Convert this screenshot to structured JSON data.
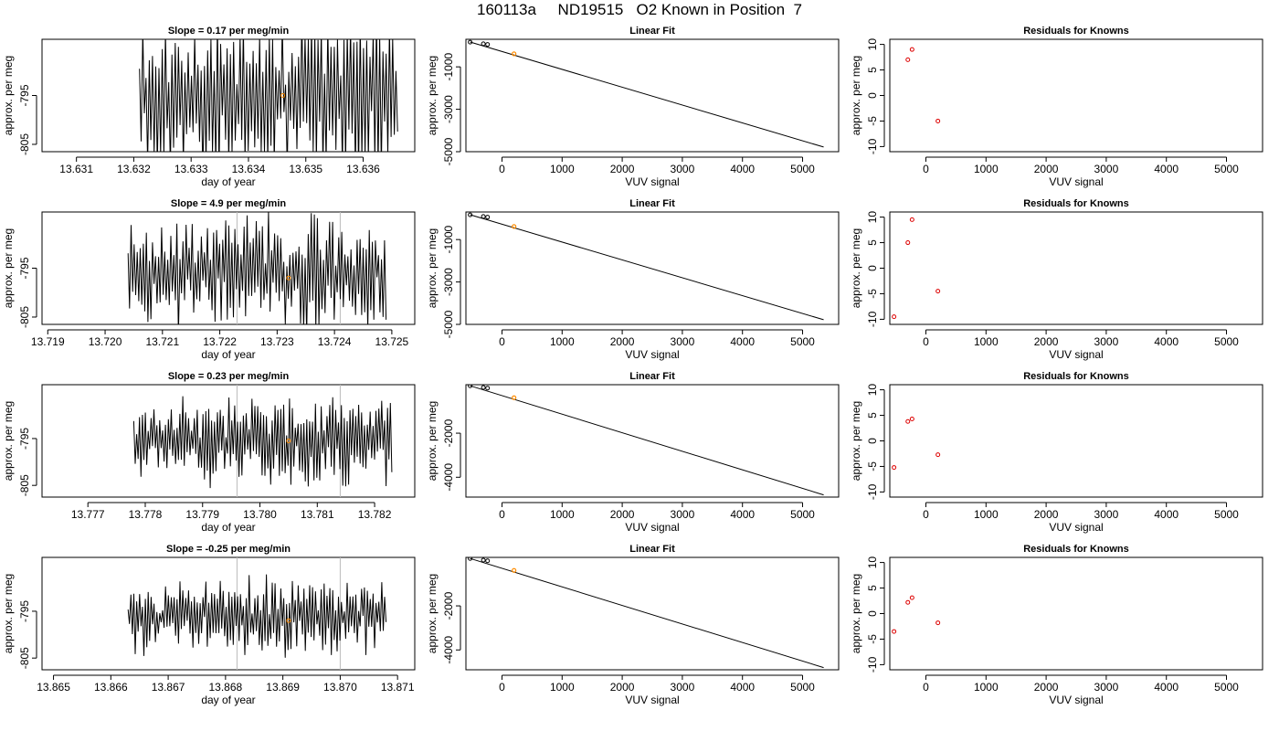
{
  "page_title": "160113a     ND19515   O2 Known in Position  7",
  "colors": {
    "trace": "#000000",
    "known_point": "#ff8c00",
    "residual_point": "#dd0000",
    "vline": "#bbbbbb"
  },
  "chart_data": [
    {
      "id": "trace-1",
      "type": "line",
      "title": "Slope =  0.17  per meg/min",
      "xlabel": "day of year",
      "ylabel": "approx. per meg",
      "xlim": [
        13.6304,
        13.6369
      ],
      "ylim": [
        -806.5,
        -783.5
      ],
      "xticks": [
        13.631,
        13.632,
        13.633,
        13.634,
        13.635,
        13.636
      ],
      "xtick_labels": [
        "13.631",
        "13.632",
        "13.633",
        "13.634",
        "13.635",
        "13.636"
      ],
      "yticks": [
        -795,
        -805
      ],
      "ytick_labels": [
        "-795",
        "-805"
      ],
      "x_start": 13.6321,
      "x_end": 13.6366,
      "n_points": 160,
      "center": -795,
      "amplitude": 14,
      "seed": 11,
      "marker": {
        "x": 13.6346,
        "y": -795
      },
      "vlines": []
    },
    {
      "id": "fit-1",
      "type": "scatter",
      "title": "Linear Fit",
      "xlabel": "VUV signal",
      "ylabel": "approx. per meg",
      "xlim": [
        -600,
        5600
      ],
      "ylim": [
        -5000,
        300
      ],
      "xticks": [
        0,
        1000,
        2000,
        3000,
        4000,
        5000
      ],
      "xtick_labels": [
        "0",
        "1000",
        "2000",
        "3000",
        "4000",
        "5000"
      ],
      "yticks": [
        -1000,
        -3000,
        -5000
      ],
      "ytick_labels": [
        "-1000",
        "-3000",
        "-5000"
      ],
      "points": [
        [
          -530,
          165
        ],
        [
          -310,
          90
        ],
        [
          -240,
          55
        ]
      ],
      "known": [
        200,
        -385
      ],
      "line": [
        [
          -530,
          170
        ],
        [
          5350,
          -4780
        ]
      ]
    },
    {
      "id": "resid-1",
      "type": "scatter",
      "title": "Residuals for Knowns",
      "xlabel": "VUV signal",
      "ylabel": "approx. per meg",
      "xlim": [
        -600,
        5600
      ],
      "ylim": [
        -11,
        11
      ],
      "xticks": [
        0,
        1000,
        2000,
        3000,
        4000,
        5000
      ],
      "xtick_labels": [
        "0",
        "1000",
        "2000",
        "3000",
        "4000",
        "5000"
      ],
      "yticks": [
        10,
        5,
        0,
        -5,
        -10
      ],
      "ytick_labels": [
        "10",
        "5",
        "0",
        "-5",
        "-10"
      ],
      "points": [
        [
          -300,
          7
        ],
        [
          -230,
          9
        ],
        [
          200,
          -5
        ]
      ]
    },
    {
      "id": "trace-2",
      "type": "line",
      "title": "Slope =  4.9  per meg/min",
      "xlabel": "day of year",
      "ylabel": "approx. per meg",
      "xlim": [
        13.7189,
        13.7254
      ],
      "ylim": [
        -806.5,
        -783.5
      ],
      "xticks": [
        13.719,
        13.72,
        13.721,
        13.722,
        13.723,
        13.724,
        13.725
      ],
      "xtick_labels": [
        "13.719",
        "13.720",
        "13.721",
        "13.722",
        "13.723",
        "13.724",
        "13.725"
      ],
      "yticks": [
        -795,
        -805
      ],
      "ytick_labels": [
        "-795",
        "-805"
      ],
      "x_start": 13.7204,
      "x_end": 13.7249,
      "n_points": 170,
      "center": -796,
      "amplitude": 10,
      "seed": 23,
      "marker": {
        "x": 13.7232,
        "y": -797
      },
      "vlines": [
        13.7223,
        13.7241
      ]
    },
    {
      "id": "fit-2",
      "type": "scatter",
      "title": "Linear Fit",
      "xlabel": "VUV signal",
      "ylabel": "approx. per meg",
      "xlim": [
        -600,
        5600
      ],
      "ylim": [
        -5000,
        300
      ],
      "xticks": [
        0,
        1000,
        2000,
        3000,
        4000,
        5000
      ],
      "xtick_labels": [
        "0",
        "1000",
        "2000",
        "3000",
        "4000",
        "5000"
      ],
      "yticks": [
        -1000,
        -3000,
        -5000
      ],
      "ytick_labels": [
        "-1000",
        "-3000",
        "-5000"
      ],
      "points": [
        [
          -530,
          165
        ],
        [
          -310,
          90
        ],
        [
          -240,
          55
        ]
      ],
      "known": [
        200,
        -385
      ],
      "line": [
        [
          -530,
          170
        ],
        [
          5350,
          -4780
        ]
      ]
    },
    {
      "id": "resid-2",
      "type": "scatter",
      "title": "Residuals for Knowns",
      "xlabel": "VUV signal",
      "ylabel": "approx. per meg",
      "xlim": [
        -600,
        5600
      ],
      "ylim": [
        -11,
        11
      ],
      "xticks": [
        0,
        1000,
        2000,
        3000,
        4000,
        5000
      ],
      "xtick_labels": [
        "0",
        "1000",
        "2000",
        "3000",
        "4000",
        "5000"
      ],
      "yticks": [
        10,
        5,
        0,
        -5,
        -10
      ],
      "ytick_labels": [
        "10",
        "5",
        "0",
        "-5",
        "-10"
      ],
      "points": [
        [
          -530,
          -9.5
        ],
        [
          -300,
          5
        ],
        [
          -230,
          9.5
        ],
        [
          200,
          -4.5
        ]
      ]
    },
    {
      "id": "trace-3",
      "type": "line",
      "title": "Slope =  0.23  per meg/min",
      "xlabel": "day of year",
      "ylabel": "approx. per meg",
      "xlim": [
        13.7762,
        13.7827
      ],
      "ylim": [
        -807.5,
        -783.5
      ],
      "xticks": [
        13.777,
        13.778,
        13.779,
        13.78,
        13.781,
        13.782
      ],
      "xtick_labels": [
        "13.777",
        "13.778",
        "13.779",
        "13.780",
        "13.781",
        "13.782"
      ],
      "yticks": [
        -795,
        -805
      ],
      "ytick_labels": [
        "-795",
        "-805"
      ],
      "x_start": 13.7778,
      "x_end": 13.7823,
      "n_points": 180,
      "center": -795.5,
      "amplitude": 8,
      "seed": 37,
      "marker": {
        "x": 13.7805,
        "y": -795.5
      },
      "vlines": [
        13.7796,
        13.7814
      ]
    },
    {
      "id": "fit-3",
      "type": "scatter",
      "title": "Linear Fit",
      "xlabel": "VUV signal",
      "ylabel": "approx. per meg",
      "xlim": [
        -600,
        5600
      ],
      "ylim": [
        -4900,
        200
      ],
      "xticks": [
        0,
        1000,
        2000,
        3000,
        4000,
        5000
      ],
      "xtick_labels": [
        "0",
        "1000",
        "2000",
        "3000",
        "4000",
        "5000"
      ],
      "yticks": [
        -2000,
        -4000
      ],
      "ytick_labels": [
        "-2000",
        "-4000"
      ],
      "points": [
        [
          -530,
          150
        ],
        [
          -310,
          75
        ],
        [
          -240,
          45
        ]
      ],
      "known": [
        200,
        -390
      ],
      "line": [
        [
          -530,
          150
        ],
        [
          5350,
          -4800
        ]
      ]
    },
    {
      "id": "resid-3",
      "type": "scatter",
      "title": "Residuals for Knowns",
      "xlabel": "VUV signal",
      "ylabel": "approx. per meg",
      "xlim": [
        -600,
        5600
      ],
      "ylim": [
        -11,
        11
      ],
      "xticks": [
        0,
        1000,
        2000,
        3000,
        4000,
        5000
      ],
      "xtick_labels": [
        "0",
        "1000",
        "2000",
        "3000",
        "4000",
        "5000"
      ],
      "yticks": [
        10,
        5,
        0,
        -5,
        -10
      ],
      "ytick_labels": [
        "10",
        "5",
        "0",
        "-5",
        "-10"
      ],
      "points": [
        [
          -530,
          -5.2
        ],
        [
          -300,
          3.8
        ],
        [
          -230,
          4.3
        ],
        [
          200,
          -2.7
        ]
      ]
    },
    {
      "id": "trace-4",
      "type": "line",
      "title": "Slope =  -0.25  per meg/min",
      "xlabel": "day of year",
      "ylabel": "approx. per meg",
      "xlim": [
        13.8648,
        13.8713
      ],
      "ylim": [
        -807.5,
        -783.5
      ],
      "xticks": [
        13.865,
        13.866,
        13.867,
        13.868,
        13.869,
        13.87,
        13.871
      ],
      "xtick_labels": [
        "13.865",
        "13.866",
        "13.867",
        "13.868",
        "13.869",
        "13.870",
        "13.871"
      ],
      "yticks": [
        -795,
        -805
      ],
      "ytick_labels": [
        "-795",
        "-805"
      ],
      "x_start": 13.8663,
      "x_end": 13.8708,
      "n_points": 180,
      "center": -796,
      "amplitude": 6.5,
      "seed": 53,
      "marker": {
        "x": 13.8691,
        "y": -797
      },
      "vlines": [
        13.8682,
        13.87
      ]
    },
    {
      "id": "fit-4",
      "type": "scatter",
      "title": "Linear Fit",
      "xlabel": "VUV signal",
      "ylabel": "approx. per meg",
      "xlim": [
        -600,
        5600
      ],
      "ylim": [
        -4900,
        200
      ],
      "xticks": [
        0,
        1000,
        2000,
        3000,
        4000,
        5000
      ],
      "xtick_labels": [
        "0",
        "1000",
        "2000",
        "3000",
        "4000",
        "5000"
      ],
      "yticks": [
        -2000,
        -4000
      ],
      "ytick_labels": [
        "-2000",
        "-4000"
      ],
      "points": [
        [
          -530,
          150
        ],
        [
          -310,
          75
        ],
        [
          -240,
          45
        ]
      ],
      "known": [
        200,
        -390
      ],
      "line": [
        [
          -530,
          150
        ],
        [
          5350,
          -4800
        ]
      ]
    },
    {
      "id": "resid-4",
      "type": "scatter",
      "title": "Residuals for Knowns",
      "xlabel": "VUV signal",
      "ylabel": "approx. per meg",
      "xlim": [
        -600,
        5600
      ],
      "ylim": [
        -11,
        11
      ],
      "xticks": [
        0,
        1000,
        2000,
        3000,
        4000,
        5000
      ],
      "xtick_labels": [
        "0",
        "1000",
        "2000",
        "3000",
        "4000",
        "5000"
      ],
      "yticks": [
        10,
        5,
        0,
        -5,
        -10
      ],
      "ytick_labels": [
        "10",
        "5",
        "0",
        "-5",
        "-10"
      ],
      "points": [
        [
          -530,
          -3.5
        ],
        [
          -300,
          2.2
        ],
        [
          -230,
          3.1
        ],
        [
          200,
          -1.8
        ]
      ]
    }
  ]
}
